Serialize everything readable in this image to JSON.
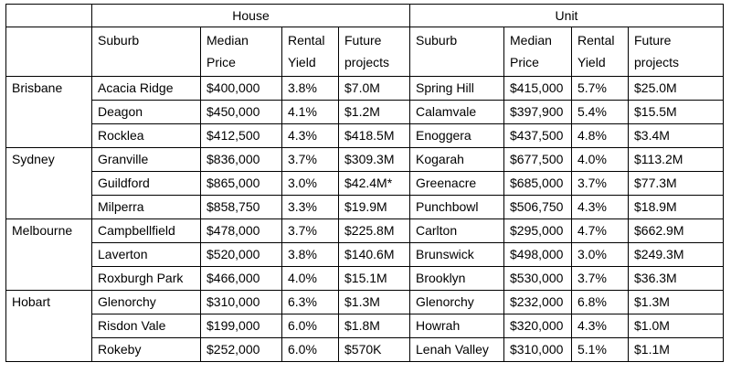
{
  "groups": {
    "house": "House",
    "unit": "Unit"
  },
  "columns": {
    "suburb": "Suburb",
    "median_price": [
      "Median",
      "Price"
    ],
    "rental_yield": [
      "Rental",
      "Yield"
    ],
    "future_projects": [
      "Future",
      "projects"
    ]
  },
  "cities": [
    {
      "name": "Brisbane",
      "rows": [
        {
          "house": [
            "Acacia Ridge",
            "$400,000",
            "3.8%",
            "$7.0M"
          ],
          "unit": [
            "Spring Hill",
            "$415,000",
            "5.7%",
            "$25.0M"
          ]
        },
        {
          "house": [
            "Deagon",
            "$450,000",
            "4.1%",
            "$1.2M"
          ],
          "unit": [
            "Calamvale",
            "$397,900",
            "5.4%",
            "$15.5M"
          ]
        },
        {
          "house": [
            "Rocklea",
            "$412,500",
            "4.3%",
            "$418.5M"
          ],
          "unit": [
            "Enoggera",
            "$437,500",
            "4.8%",
            "$3.4M"
          ]
        }
      ]
    },
    {
      "name": "Sydney",
      "rows": [
        {
          "house": [
            "Granville",
            "$836,000",
            "3.7%",
            "$309.3M"
          ],
          "unit": [
            "Kogarah",
            "$677,500",
            "4.0%",
            "$113.2M"
          ]
        },
        {
          "house": [
            "Guildford",
            "$865,000",
            "3.0%",
            "$42.4M*"
          ],
          "unit": [
            "Greenacre",
            "$685,000",
            "3.7%",
            "$77.3M"
          ]
        },
        {
          "house": [
            "Milperra",
            "$858,750",
            "3.3%",
            "$19.9M"
          ],
          "unit": [
            "Punchbowl",
            "$506,750",
            "4.3%",
            "$18.9M"
          ]
        }
      ]
    },
    {
      "name": "Melbourne",
      "rows": [
        {
          "house": [
            "Campbellfield",
            "$478,000",
            "3.7%",
            "$225.8M"
          ],
          "unit": [
            "Carlton",
            "$295,000",
            "4.7%",
            "$662.9M"
          ]
        },
        {
          "house": [
            "Laverton",
            "$520,000",
            "3.8%",
            "$140.6M"
          ],
          "unit": [
            "Brunswick",
            "$498,000",
            "3.0%",
            "$249.3M"
          ]
        },
        {
          "house": [
            "Roxburgh Park",
            "$466,000",
            "4.0%",
            "$15.1M"
          ],
          "unit": [
            "Brooklyn",
            "$530,000",
            "3.7%",
            "$36.3M"
          ]
        }
      ]
    },
    {
      "name": "Hobart",
      "rows": [
        {
          "house": [
            "Glenorchy",
            "$310,000",
            "6.3%",
            "$1.3M"
          ],
          "unit": [
            "Glenorchy",
            "$232,000",
            "6.8%",
            "$1.3M"
          ]
        },
        {
          "house": [
            "Risdon Vale",
            "$199,000",
            "6.0%",
            "$1.8M"
          ],
          "unit": [
            "Howrah",
            "$320,000",
            "4.3%",
            "$1.0M"
          ]
        },
        {
          "house": [
            "Rokeby",
            "$252,000",
            "6.0%",
            "$570K"
          ],
          "unit": [
            "Lenah Valley",
            "$310,000",
            "5.1%",
            "$1.1M"
          ]
        }
      ]
    }
  ]
}
